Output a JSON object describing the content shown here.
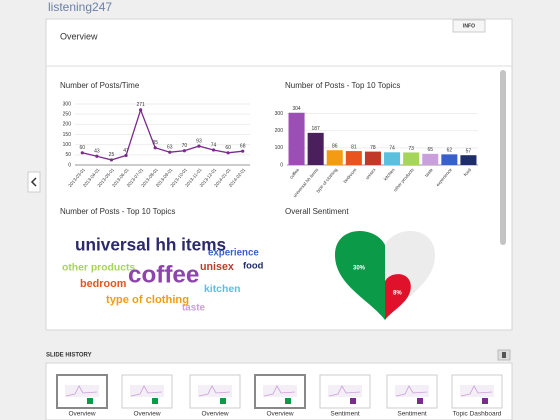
{
  "logo": "listening247",
  "info_button": "INFO",
  "page_title": "Overview",
  "chart_data": [
    {
      "type": "line",
      "title": "Number of Posts/Time",
      "color": "#7b2a8e",
      "categories": [
        "2013-03-01",
        "2013-04-01",
        "2013-05-01",
        "2013-06-01",
        "2013-07-01",
        "2013-08-01",
        "2013-09-01",
        "2013-10-01",
        "2013-11-01",
        "2013-12-01",
        "2014-01-01",
        "2014-02-01"
      ],
      "values": [
        60,
        43,
        25,
        47,
        271,
        85,
        63,
        70,
        93,
        74,
        60,
        68
      ],
      "ylim": [
        0,
        300
      ],
      "yticks": [
        0,
        50,
        100,
        150,
        200,
        250,
        300
      ],
      "grid": true
    },
    {
      "type": "bar",
      "title": "Number of Posts - Top 10 Topics",
      "categories": [
        "coffee",
        "universal hh items",
        "type of clothing",
        "bedroom",
        "unisex",
        "kitchen",
        "other products",
        "taste",
        "experience",
        "food"
      ],
      "values": [
        304,
        187,
        86,
        81,
        78,
        74,
        73,
        65,
        62,
        57
      ],
      "colors": [
        "#9b4fb5",
        "#4a1f5c",
        "#f39c12",
        "#e8541e",
        "#c0392b",
        "#5bc0de",
        "#a5d65a",
        "#c9a0dc",
        "#3a5fcd",
        "#1f2d6b"
      ],
      "ylim": [
        0,
        320
      ],
      "yticks": [
        0,
        100,
        200,
        300
      ],
      "grid": true
    },
    {
      "type": "wordcloud",
      "title": "Number of Posts - Top 10 Topics",
      "words": [
        "universal hh items",
        "experience",
        "other products",
        "coffee",
        "unisex",
        "food",
        "bedroom",
        "kitchen",
        "type of clothing",
        "taste"
      ],
      "values": [
        187,
        62,
        73,
        304,
        78,
        57,
        81,
        74,
        86,
        65
      ],
      "colors": [
        "#2c2a6b",
        "#3a5fcd",
        "#a5d65a",
        "#8e44ad",
        "#c0392b",
        "#1f2d6b",
        "#e8541e",
        "#5bc0de",
        "#f39c12",
        "#c9a0dc"
      ]
    },
    {
      "type": "heart",
      "title": "Overall Sentiment",
      "values": [
        30,
        8
      ],
      "value_labels": [
        "30%",
        "8%"
      ],
      "colors": [
        "#0a9a48",
        "#e0112b"
      ],
      "rest_color": "#ececec"
    }
  ],
  "slide_history": {
    "title": "SLIDE HISTORY",
    "slides": [
      "Overview",
      "Overview",
      "Overview",
      "Overview",
      "Sentiment",
      "Sentiment",
      "Topic Dashboard"
    ]
  }
}
